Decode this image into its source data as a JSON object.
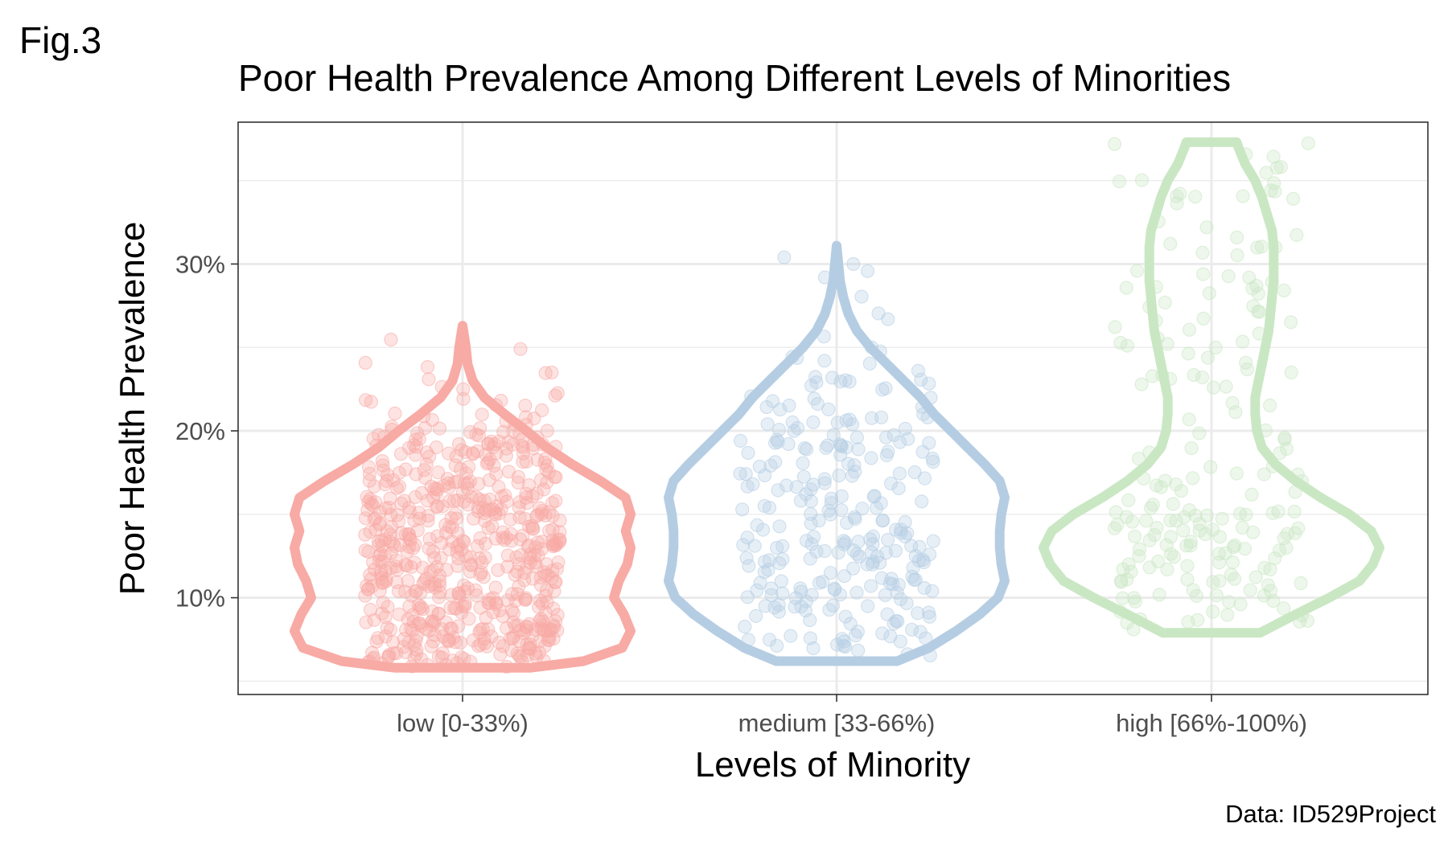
{
  "figure_label": "Fig.3",
  "caption": "Data: ID529Project",
  "chart_data": {
    "type": "violin",
    "title": "Poor Health Prevalence Among Different Levels of Minorities",
    "xlabel": "Levels of Minority",
    "ylabel": "Poor Health Prevalence",
    "ylim": [
      4.2,
      38.5
    ],
    "yticks": [
      10,
      20,
      30
    ],
    "ytick_labels": [
      "10%",
      "20%",
      "30%"
    ],
    "y_minor_gridlines": [
      5,
      15,
      25,
      35
    ],
    "grid": true,
    "legend": "none",
    "categories": [
      "low [0-33%)",
      "medium [33-66%)",
      "high [66%-100%)"
    ],
    "series": [
      {
        "category": "low [0-33%)",
        "color": "#f8aaa5",
        "point_count": 620,
        "range": [
          5.8,
          26.3
        ],
        "violin_profile": [
          [
            5.8,
            0.4
          ],
          [
            6.2,
            0.72
          ],
          [
            7.0,
            0.95
          ],
          [
            8.0,
            1.0
          ],
          [
            9.0,
            0.96
          ],
          [
            10.0,
            0.9
          ],
          [
            11.0,
            0.93
          ],
          [
            12.0,
            0.98
          ],
          [
            13.0,
            1.0
          ],
          [
            14.0,
            0.97
          ],
          [
            15.0,
            1.0
          ],
          [
            16.0,
            0.97
          ],
          [
            17.0,
            0.82
          ],
          [
            18.0,
            0.65
          ],
          [
            19.0,
            0.5
          ],
          [
            20.0,
            0.38
          ],
          [
            21.0,
            0.25
          ],
          [
            22.0,
            0.13
          ],
          [
            23.0,
            0.06
          ],
          [
            24.0,
            0.03
          ],
          [
            25.0,
            0.02
          ],
          [
            26.3,
            0.0
          ]
        ]
      },
      {
        "category": "medium [33-66%)",
        "color": "#b5cde3",
        "point_count": 270,
        "range": [
          6.2,
          31.1
        ],
        "violin_profile": [
          [
            6.2,
            0.36
          ],
          [
            7.0,
            0.55
          ],
          [
            8.0,
            0.71
          ],
          [
            9.0,
            0.85
          ],
          [
            10.0,
            0.96
          ],
          [
            11.0,
            1.0
          ],
          [
            12.0,
            0.98
          ],
          [
            13.0,
            0.97
          ],
          [
            14.0,
            0.97
          ],
          [
            15.0,
            0.98
          ],
          [
            16.0,
            1.0
          ],
          [
            17.0,
            0.97
          ],
          [
            18.0,
            0.88
          ],
          [
            19.0,
            0.78
          ],
          [
            20.0,
            0.68
          ],
          [
            21.0,
            0.58
          ],
          [
            22.0,
            0.5
          ],
          [
            23.0,
            0.4
          ],
          [
            24.0,
            0.3
          ],
          [
            25.0,
            0.2
          ],
          [
            26.0,
            0.12
          ],
          [
            27.0,
            0.07
          ],
          [
            28.0,
            0.04
          ],
          [
            29.0,
            0.02
          ],
          [
            31.1,
            0.0
          ]
        ]
      },
      {
        "category": "high [66%-100%)",
        "color": "#c9e7c3",
        "point_count": 200,
        "range": [
          7.9,
          37.3
        ],
        "violin_profile": [
          [
            7.9,
            0.29
          ],
          [
            9.0,
            0.5
          ],
          [
            10.0,
            0.7
          ],
          [
            11.0,
            0.88
          ],
          [
            12.0,
            0.96
          ],
          [
            13.0,
            1.0
          ],
          [
            14.0,
            0.95
          ],
          [
            15.0,
            0.82
          ],
          [
            16.0,
            0.65
          ],
          [
            17.0,
            0.5
          ],
          [
            18.0,
            0.38
          ],
          [
            19.0,
            0.3
          ],
          [
            20.0,
            0.27
          ],
          [
            21.0,
            0.26
          ],
          [
            22.0,
            0.26
          ],
          [
            23.0,
            0.28
          ],
          [
            24.0,
            0.3
          ],
          [
            25.0,
            0.32
          ],
          [
            26.0,
            0.34
          ],
          [
            27.0,
            0.35
          ],
          [
            28.0,
            0.36
          ],
          [
            29.0,
            0.37
          ],
          [
            30.0,
            0.37
          ],
          [
            31.0,
            0.37
          ],
          [
            32.0,
            0.36
          ],
          [
            33.0,
            0.33
          ],
          [
            34.0,
            0.3
          ],
          [
            35.0,
            0.26
          ],
          [
            36.0,
            0.2
          ],
          [
            37.0,
            0.16
          ],
          [
            37.3,
            0.15
          ]
        ]
      }
    ]
  }
}
